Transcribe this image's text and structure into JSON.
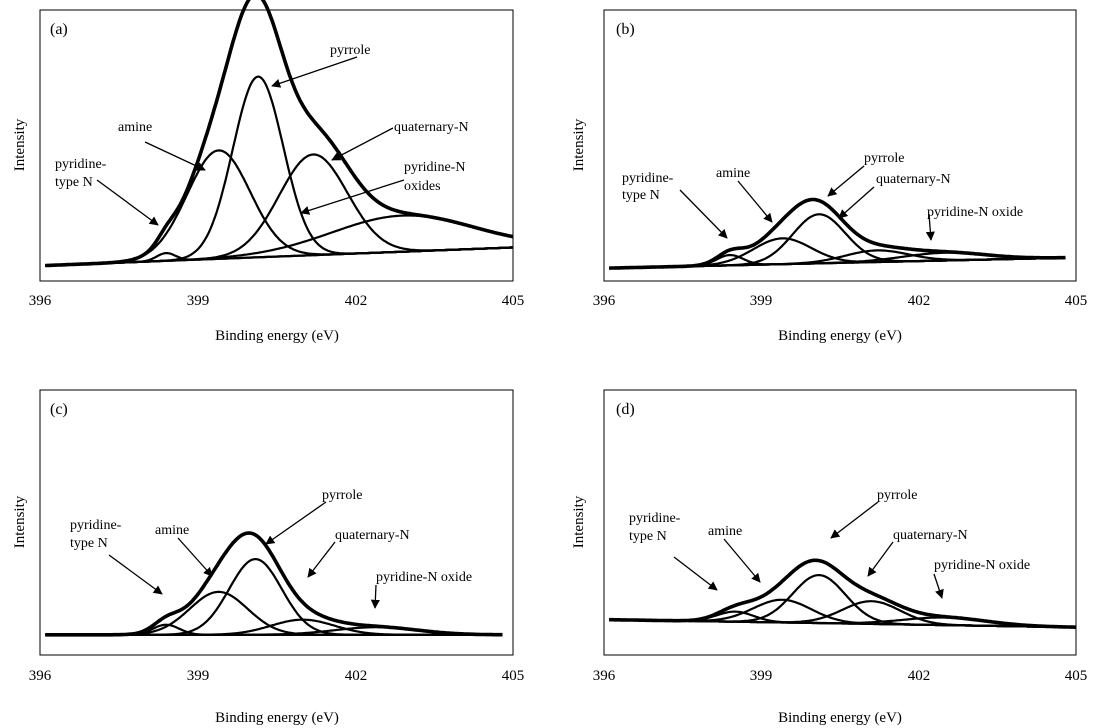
{
  "chart_data": [
    {
      "panel": "(a)",
      "type": "line",
      "xlabel": "Binding energy (eV)",
      "ylabel": "Intensity",
      "xlim": [
        396,
        405
      ],
      "xticks": [
        "396",
        "399",
        "402",
        "405"
      ],
      "ylim": [
        0,
        1.05
      ],
      "grid": false,
      "baseline": [
        [
          396.1,
          0.06
        ],
        [
          405.0,
          0.13
        ]
      ],
      "components": [
        {
          "name": "pyridine-type N",
          "center": 398.4,
          "sigma": 0.18,
          "height": 0.03
        },
        {
          "name": "amine",
          "center": 399.4,
          "sigma": 0.6,
          "height": 0.42
        },
        {
          "name": "pyrrole",
          "center": 400.15,
          "sigma": 0.48,
          "height": 0.7
        },
        {
          "name": "quaternary-N",
          "center": 401.2,
          "sigma": 0.65,
          "height": 0.39
        },
        {
          "name": "pyridine-N oxides",
          "center": 402.9,
          "sigma": 1.35,
          "height": 0.14
        }
      ],
      "annotations": [
        {
          "label": "pyrrole",
          "x": 400.0,
          "y": 0.82
        },
        {
          "label": "amine",
          "x": 399.0,
          "y": 0.35
        },
        {
          "label": "quaternary-N",
          "x": 401.3,
          "y": 0.42
        },
        {
          "label": "pyridine-N oxides",
          "x": 401.1,
          "y": 0.13
        },
        {
          "label": "pyridine-type N",
          "x": 398.4,
          "y": 0.08
        }
      ]
    },
    {
      "panel": "(b)",
      "type": "line",
      "xlabel": "Binding energy (eV)",
      "ylabel": "Intensity",
      "xlim": [
        396,
        405
      ],
      "xticks": [
        "396",
        "399",
        "402",
        "405"
      ],
      "ylim": [
        0,
        1.05
      ],
      "grid": false,
      "baseline": [
        [
          396.1,
          0.05
        ],
        [
          404.8,
          0.09
        ]
      ],
      "components": [
        {
          "name": "pyridine-type N",
          "center": 398.4,
          "sigma": 0.25,
          "height": 0.04
        },
        {
          "name": "amine",
          "center": 399.4,
          "sigma": 0.55,
          "height": 0.1
        },
        {
          "name": "pyrrole",
          "center": 400.1,
          "sigma": 0.5,
          "height": 0.19
        },
        {
          "name": "quaternary-N",
          "center": 401.2,
          "sigma": 0.6,
          "height": 0.045
        },
        {
          "name": "pyridine-N oxide",
          "center": 402.5,
          "sigma": 0.8,
          "height": 0.03
        }
      ],
      "annotations": [
        {
          "label": "pyrrole",
          "x": 400.0,
          "y": 0.22
        },
        {
          "label": "amine",
          "x": 399.2,
          "y": 0.16
        },
        {
          "label": "quaternary-N",
          "x": 401.1,
          "y": 0.12
        },
        {
          "label": "pyridine-N oxide",
          "x": 402.4,
          "y": 0.11
        },
        {
          "label": "pyridine-type N",
          "x": 398.2,
          "y": 0.12
        }
      ]
    },
    {
      "panel": "(c)",
      "type": "line",
      "xlabel": "Binding energy (eV)",
      "ylabel": "Intensity",
      "xlim": [
        396,
        405
      ],
      "xticks": [
        "396",
        "399",
        "402",
        "405"
      ],
      "ylim": [
        0,
        1.05
      ],
      "grid": false,
      "baseline": [
        [
          396.1,
          0.08
        ],
        [
          404.8,
          0.08
        ]
      ],
      "components": [
        {
          "name": "pyridine-type N",
          "center": 398.4,
          "sigma": 0.25,
          "height": 0.04
        },
        {
          "name": "amine",
          "center": 399.4,
          "sigma": 0.55,
          "height": 0.17
        },
        {
          "name": "pyrrole",
          "center": 400.1,
          "sigma": 0.5,
          "height": 0.3
        },
        {
          "name": "quaternary-N",
          "center": 401.0,
          "sigma": 0.6,
          "height": 0.06
        },
        {
          "name": "pyridine-N oxide",
          "center": 402.4,
          "sigma": 0.8,
          "height": 0.03
        }
      ],
      "annotations": [
        {
          "label": "pyrrole",
          "x": 400.0,
          "y": 0.35
        },
        {
          "label": "amine",
          "x": 399.3,
          "y": 0.26
        },
        {
          "label": "quaternary-N",
          "x": 401.0,
          "y": 0.16
        },
        {
          "label": "pyridine-N oxide",
          "x": 402.3,
          "y": 0.1
        },
        {
          "label": "pyridine-type N",
          "x": 398.3,
          "y": 0.13
        }
      ]
    },
    {
      "panel": "(d)",
      "type": "line",
      "xlabel": "Binding energy (eV)",
      "ylabel": "Intensity",
      "xlim": [
        396,
        405
      ],
      "xticks": [
        "396",
        "399",
        "402",
        "405"
      ],
      "ylim": [
        0,
        1.05
      ],
      "grid": false,
      "baseline": [
        [
          396.1,
          0.14
        ],
        [
          405.0,
          0.11
        ]
      ],
      "components": [
        {
          "name": "pyridine-type N",
          "center": 398.5,
          "sigma": 0.35,
          "height": 0.04
        },
        {
          "name": "amine",
          "center": 399.4,
          "sigma": 0.55,
          "height": 0.09
        },
        {
          "name": "pyrrole",
          "center": 400.1,
          "sigma": 0.5,
          "height": 0.19
        },
        {
          "name": "quaternary-N",
          "center": 401.1,
          "sigma": 0.55,
          "height": 0.09
        },
        {
          "name": "pyridine-N oxide",
          "center": 402.5,
          "sigma": 0.8,
          "height": 0.03
        }
      ],
      "annotations": [
        {
          "label": "pyrrole",
          "x": 400.1,
          "y": 0.24
        },
        {
          "label": "amine",
          "x": 399.0,
          "y": 0.2
        },
        {
          "label": "quaternary-N",
          "x": 401.2,
          "y": 0.19
        },
        {
          "label": "pyridine-N oxide",
          "x": 402.3,
          "y": 0.14
        },
        {
          "label": "pyridine-type N",
          "x": 398.4,
          "y": 0.17
        }
      ]
    }
  ]
}
